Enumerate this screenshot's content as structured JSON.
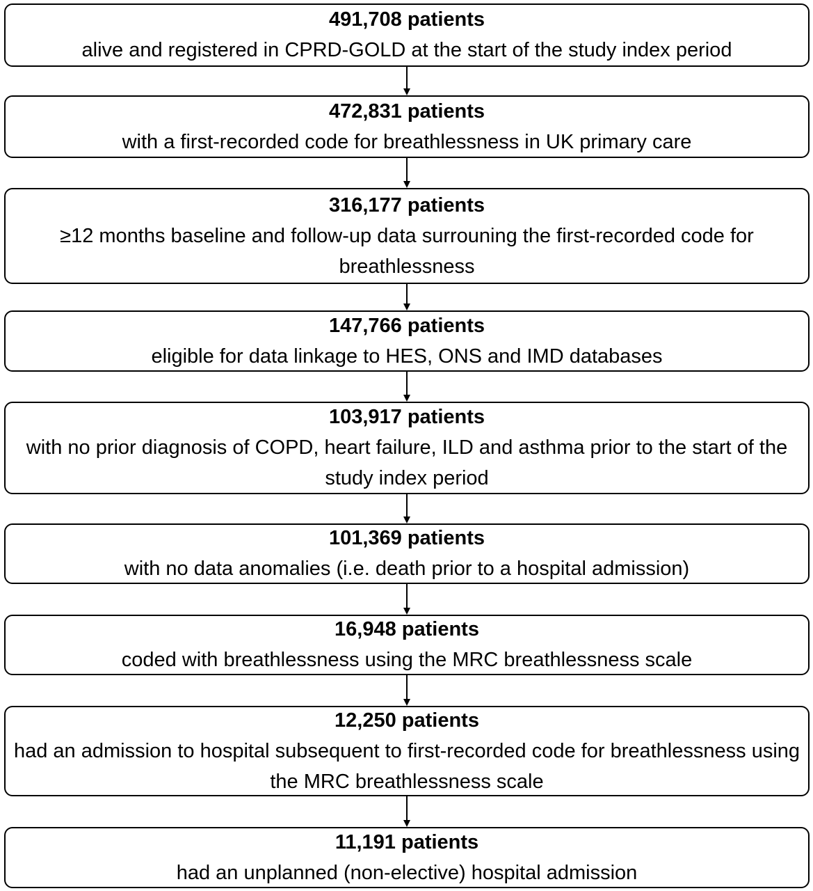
{
  "nodes": [
    {
      "count": "491,708 patients",
      "description": "alive and registered in CPRD-GOLD at the start of the study index period"
    },
    {
      "count": "472,831 patients",
      "description": "with a first-recorded code for breathlessness in UK primary care"
    },
    {
      "count": "316,177 patients",
      "description": "≥12 months baseline and follow-up data surrouning the first-recorded code for breathlessness"
    },
    {
      "count": "147,766 patients",
      "description": "eligible for data linkage to HES, ONS and IMD databases"
    },
    {
      "count": "103,917 patients",
      "description": "with no prior diagnosis of COPD, heart failure, ILD and asthma prior to the start of the study index period"
    },
    {
      "count": "101,369 patients",
      "description": "with no data anomalies (i.e. death prior to a hospital admission)"
    },
    {
      "count": "16,948 patients",
      "description": "coded with breathlessness using the MRC breathlessness scale"
    },
    {
      "count": "12,250 patients",
      "description": "had an admission to hospital subsequent to first-recorded code for breathlessness using the MRC breathlessness scale"
    },
    {
      "count": "11,191 patients",
      "description": "had an unplanned (non-elective) hospital admission"
    }
  ]
}
